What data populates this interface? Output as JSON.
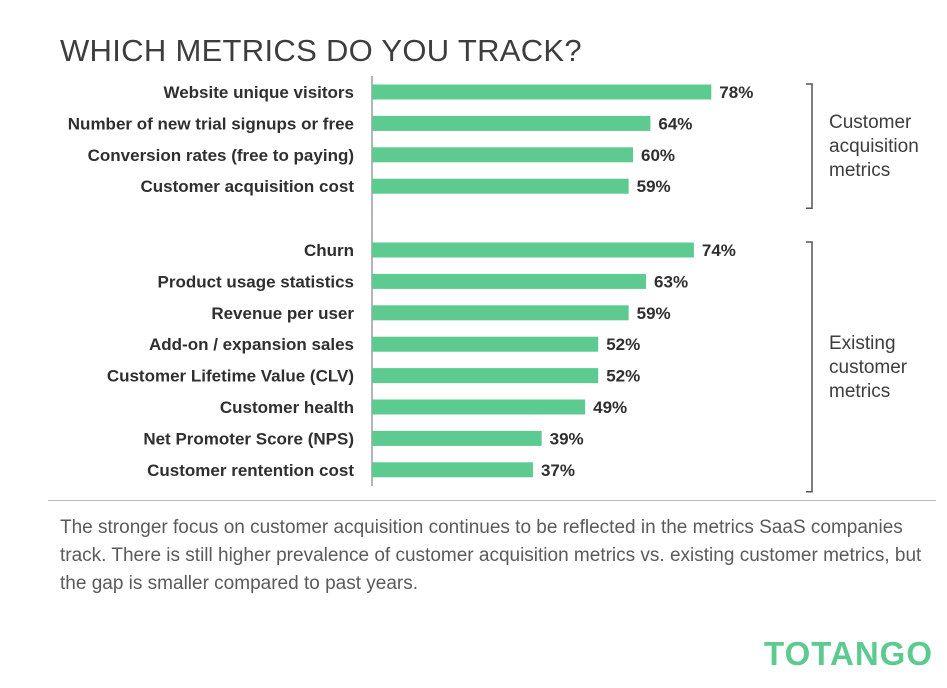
{
  "title": "WHICH METRICS DO YOU TRACK?",
  "caption": "The stronger focus on customer acquisition continues to be reflected in the metrics SaaS companies track.  There is still higher prevalence of customer acquisition metrics vs. existing customer metrics, but the gap is smaller compared to past years.",
  "logo": "TOTANGO",
  "colors": {
    "bar": "#5dcb8f",
    "axis": "#9e9e9e",
    "bracket": "#555555",
    "logo": "#5dcb8f"
  },
  "chart_data": {
    "type": "bar",
    "orientation": "horizontal",
    "value_suffix": "%",
    "xlim": [
      0,
      100
    ],
    "groups": [
      {
        "name_lines": [
          "Customer",
          "acquisition",
          "metrics"
        ],
        "categories": [
          "Website unique visitors",
          "Number of new trial signups or free",
          "Conversion rates (free to paying)",
          "Customer acquisition cost"
        ],
        "values": [
          78,
          64,
          60,
          59
        ]
      },
      {
        "name_lines": [
          "Existing",
          "customer",
          "metrics"
        ],
        "categories": [
          "Churn",
          "Product usage statistics",
          "Revenue per user",
          "Add-on / expansion sales",
          "Customer Lifetime Value (CLV)",
          "Customer health",
          "Net Promoter Score (NPS)",
          "Customer rentention cost"
        ],
        "values": [
          74,
          63,
          59,
          52,
          52,
          49,
          39,
          37
        ]
      }
    ]
  }
}
